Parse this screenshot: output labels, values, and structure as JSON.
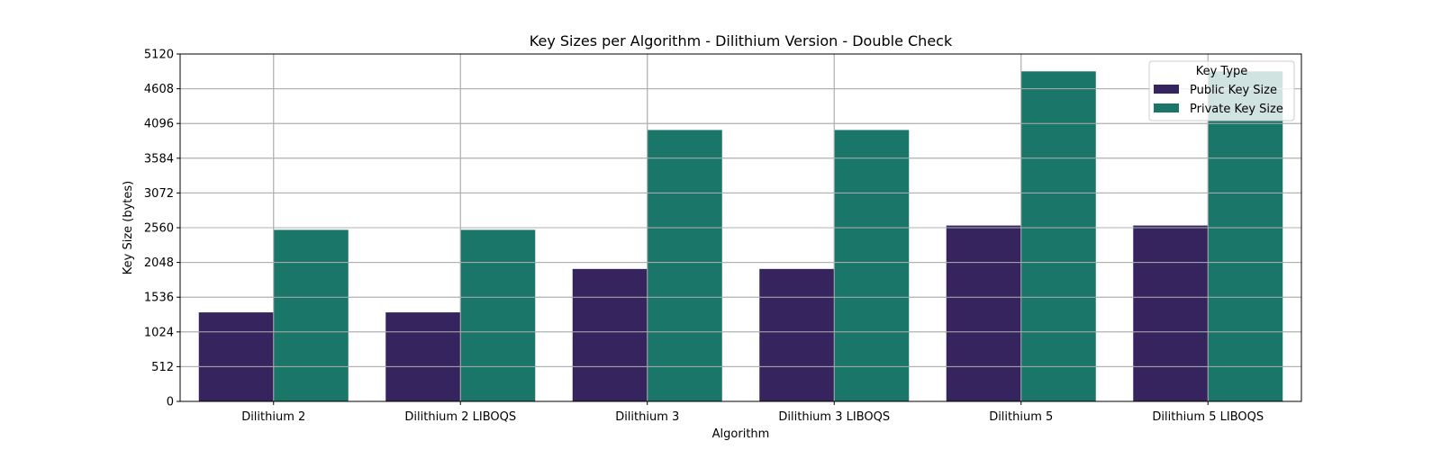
{
  "chart_data": {
    "type": "bar",
    "title": "Key Sizes per Algorithm - Dilithium Version - Double Check",
    "xlabel": "Algorithm",
    "ylabel": "Key Size (bytes)",
    "ylim": [
      0,
      5120
    ],
    "yticks": [
      0,
      512,
      1024,
      1536,
      2048,
      2560,
      3072,
      3584,
      4096,
      4608,
      5120
    ],
    "grid": true,
    "categories": [
      "Dilithium 2",
      "Dilithium 2 LIBOQS",
      "Dilithium 3",
      "Dilithium 3 LIBOQS",
      "Dilithium 5",
      "Dilithium 5 LIBOQS"
    ],
    "legend": {
      "title": "Key Type",
      "placement": "top-right"
    },
    "series": [
      {
        "name": "Public Key Size",
        "color": "#35245e",
        "values": [
          1312,
          1312,
          1952,
          1952,
          2592,
          2592
        ]
      },
      {
        "name": "Private Key Size",
        "color": "#1a7668",
        "values": [
          2528,
          2528,
          4000,
          4000,
          4864,
          4864
        ]
      }
    ]
  }
}
